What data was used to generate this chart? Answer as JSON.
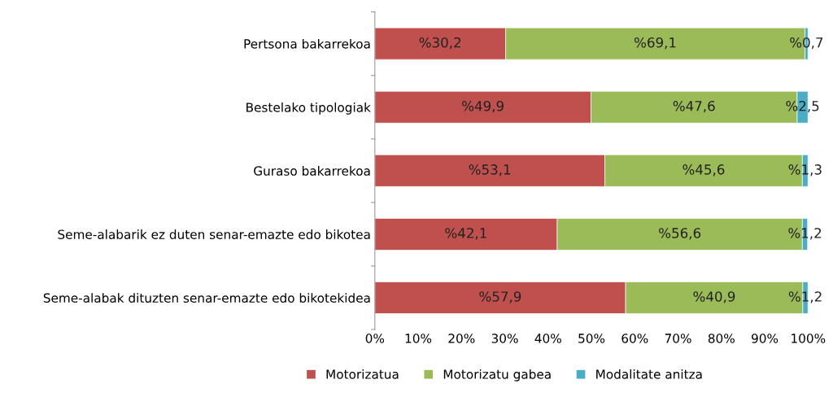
{
  "chart_data": {
    "type": "bar",
    "orientation": "horizontal",
    "stacked": true,
    "categories": [
      "Pertsona bakarrekoa",
      "Bestelako tipologiak",
      "Guraso bakarrekoa",
      "Seme-alabarik ez duten senar-emazte edo bikotea",
      "Seme-alabak dituzten senar-emazte edo bikotekidea"
    ],
    "series": [
      {
        "name": "Motorizatua",
        "color": "#c0504d",
        "values": [
          30.2,
          49.9,
          53.1,
          42.1,
          57.9
        ],
        "value_labels": [
          "%30,2",
          "%49,9",
          "%53,1",
          "%42,1",
          "%57,9"
        ]
      },
      {
        "name": "Motorizatu gabea",
        "color": "#9bbb59",
        "values": [
          69.1,
          47.6,
          45.6,
          56.6,
          40.9
        ],
        "value_labels": [
          "%69,1",
          "%47,6",
          "%45,6",
          "%56,6",
          "%40,9"
        ]
      },
      {
        "name": "Modalitate anitza",
        "color": "#4bacc6",
        "values": [
          0.7,
          2.5,
          1.3,
          1.2,
          1.2
        ],
        "value_labels": [
          "%0,7",
          "%2,5",
          "%1,3",
          "%1,2",
          "%1,2"
        ]
      }
    ],
    "xlim": [
      0,
      100
    ],
    "xticks": [
      {
        "value": 0,
        "label": "0%"
      },
      {
        "value": 10,
        "label": "10%"
      },
      {
        "value": 20,
        "label": "20%"
      },
      {
        "value": 30,
        "label": "30%"
      },
      {
        "value": 40,
        "label": "40%"
      },
      {
        "value": 50,
        "label": "50%"
      },
      {
        "value": 60,
        "label": "60%"
      },
      {
        "value": 70,
        "label": "70%"
      },
      {
        "value": 80,
        "label": "80%"
      },
      {
        "value": 90,
        "label": "90%"
      },
      {
        "value": 100,
        "label": "100%"
      }
    ],
    "legend": "bottom",
    "grid": false
  }
}
